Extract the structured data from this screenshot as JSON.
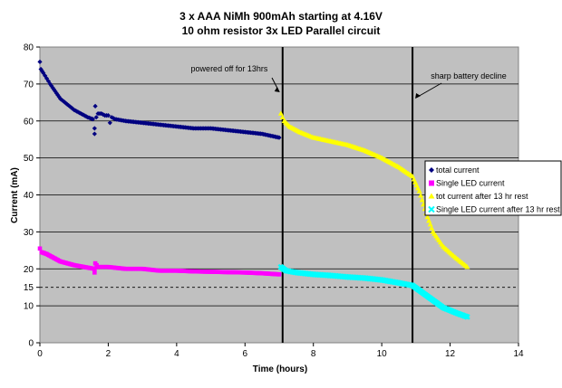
{
  "chart_data": {
    "type": "scatter",
    "title": [
      "3 x AAA NiMh 900mAh starting at 4.16V",
      "10 ohm resistor 3x LED Parallel circuit"
    ],
    "xlabel": "Time (hours)",
    "ylabel": "Current (mA)",
    "xlim": [
      0,
      14
    ],
    "ylim": [
      0,
      80
    ],
    "xticks": [
      0,
      2,
      4,
      6,
      8,
      10,
      12,
      14
    ],
    "yticks": [
      0,
      10,
      15,
      20,
      30,
      40,
      50,
      60,
      70,
      80
    ],
    "grid": "horizontal",
    "legend_position": "right",
    "series": [
      {
        "name": "total current",
        "color": "#000080",
        "marker": "diamond",
        "points": [
          [
            0,
            76
          ],
          [
            0.03,
            74
          ],
          [
            0.1,
            73
          ],
          [
            0.2,
            71.5
          ],
          [
            0.3,
            70
          ],
          [
            0.45,
            68
          ],
          [
            0.6,
            66
          ],
          [
            0.8,
            64.5
          ],
          [
            1.0,
            63
          ],
          [
            1.2,
            62
          ],
          [
            1.4,
            61
          ],
          [
            1.55,
            60.5
          ],
          [
            1.6,
            58
          ],
          [
            1.6,
            56.5
          ],
          [
            1.62,
            64
          ],
          [
            1.65,
            61
          ],
          [
            1.7,
            62
          ],
          [
            1.8,
            62
          ],
          [
            1.9,
            61.5
          ],
          [
            2.0,
            61.5
          ],
          [
            2.05,
            59.5
          ],
          [
            2.1,
            61
          ],
          [
            2.2,
            60.5
          ],
          [
            2.5,
            60
          ],
          [
            3.0,
            59.5
          ],
          [
            3.5,
            59
          ],
          [
            4.0,
            58.5
          ],
          [
            4.5,
            58
          ],
          [
            5.0,
            58
          ],
          [
            5.5,
            57.5
          ],
          [
            6.0,
            57
          ],
          [
            6.5,
            56.5
          ],
          [
            7.0,
            55.5
          ]
        ]
      },
      {
        "name": "Single LED current",
        "color": "#ff00ff",
        "marker": "square",
        "points": [
          [
            0,
            25.5
          ],
          [
            0.05,
            24.5
          ],
          [
            0.2,
            24
          ],
          [
            0.4,
            23
          ],
          [
            0.6,
            22
          ],
          [
            0.8,
            21.5
          ],
          [
            1.0,
            21
          ],
          [
            1.3,
            20.5
          ],
          [
            1.6,
            20
          ],
          [
            1.6,
            19
          ],
          [
            1.62,
            21.5
          ],
          [
            1.7,
            20.5
          ],
          [
            2.0,
            20.5
          ],
          [
            2.5,
            20
          ],
          [
            3.0,
            20
          ],
          [
            3.5,
            19.5
          ],
          [
            4.0,
            19.5
          ],
          [
            4.5,
            19.3
          ],
          [
            5.0,
            19.2
          ],
          [
            5.5,
            19.1
          ],
          [
            6.0,
            19
          ],
          [
            6.5,
            18.8
          ],
          [
            7.0,
            18.5
          ]
        ]
      },
      {
        "name": "tot current after 13 hr rest",
        "color": "#ffff00",
        "marker": "triangle",
        "points": [
          [
            7.05,
            62
          ],
          [
            7.15,
            60
          ],
          [
            7.3,
            58.5
          ],
          [
            7.6,
            57
          ],
          [
            8.0,
            55.5
          ],
          [
            8.5,
            54.5
          ],
          [
            9.0,
            53.5
          ],
          [
            9.5,
            52
          ],
          [
            10.0,
            50
          ],
          [
            10.5,
            47.5
          ],
          [
            10.9,
            45
          ],
          [
            11.1,
            41
          ],
          [
            11.3,
            35
          ],
          [
            11.5,
            30
          ],
          [
            11.8,
            26
          ],
          [
            12.1,
            23.5
          ],
          [
            12.5,
            20.5
          ]
        ]
      },
      {
        "name": "Single LED current after 13 hr rest",
        "color": "#00ffff",
        "marker": "x",
        "points": [
          [
            7.05,
            20.5
          ],
          [
            7.2,
            19.5
          ],
          [
            7.5,
            19
          ],
          [
            8.0,
            18.5
          ],
          [
            8.5,
            18.2
          ],
          [
            9.0,
            17.8
          ],
          [
            9.5,
            17.5
          ],
          [
            10.0,
            17
          ],
          [
            10.5,
            16.2
          ],
          [
            10.9,
            15.5
          ],
          [
            11.2,
            13.5
          ],
          [
            11.5,
            11.5
          ],
          [
            11.8,
            9.5
          ],
          [
            12.2,
            8
          ],
          [
            12.5,
            7
          ]
        ]
      }
    ],
    "reference_lines": [
      {
        "axis": "x",
        "value": 7.1,
        "label": "powered off for 13hrs",
        "style": "solid"
      },
      {
        "axis": "x",
        "value": 10.9,
        "label": "sharp battery decline",
        "style": "solid"
      },
      {
        "axis": "y",
        "value": 15,
        "style": "dashed"
      }
    ]
  }
}
